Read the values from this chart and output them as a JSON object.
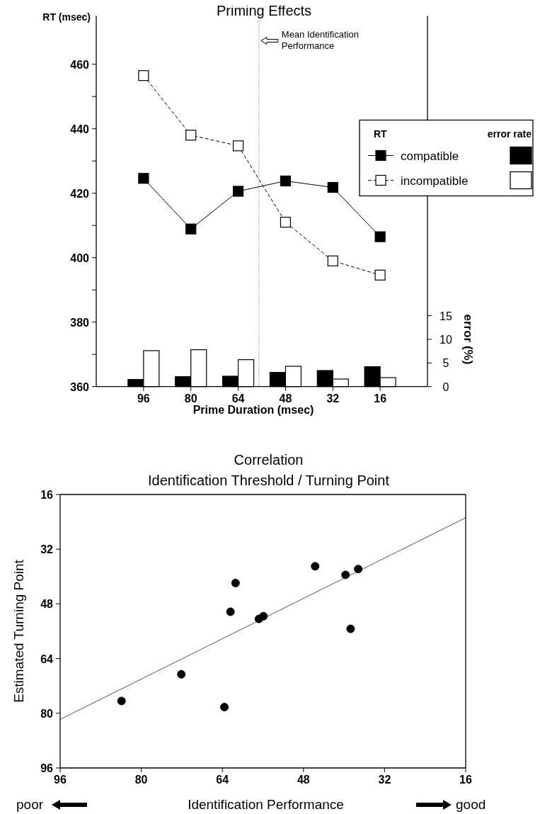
{
  "chart_data": [
    {
      "type": "line",
      "title": "Priming Effects",
      "xlabel": "Prime Duration (msec)",
      "ylabel": "RT (msec)",
      "y2label": "error (%)",
      "legend_title": "RT",
      "annotations": [
        "error rate"
      ],
      "x": [
        96,
        80,
        64,
        48,
        32,
        16
      ],
      "xlim": [
        112,
        0
      ],
      "xticks": [
        96,
        80,
        64,
        48,
        32,
        16
      ],
      "ylim": [
        360,
        475
      ],
      "yticks": [
        360,
        {
          "value": 370,
          "label": null
        },
        380,
        {
          "value": 390,
          "label": null
        },
        400,
        {
          "value": 410,
          "label": null
        },
        420,
        {
          "value": 430,
          "label": null
        },
        440,
        {
          "value": 450,
          "label": null
        },
        460
      ],
      "y2lim": [
        0,
        78.4
      ],
      "y2ticks": [
        0,
        5,
        10,
        15
      ],
      "legend": "top right",
      "marker": "square",
      "ref_lines": [
        {
          "axis": "x",
          "value": 57,
          "label": "Mean Identification Performance",
          "line_style": "dotted"
        }
      ],
      "series": [
        {
          "name": "compatible",
          "type": "line",
          "color": "#000000",
          "line_style": "solid",
          "values": [
            424.6,
            408.9,
            420.6,
            423.8,
            421.8,
            406.5
          ]
        },
        {
          "name": "incompatible",
          "type": "line",
          "color": "#ffffff",
          "line_style": "dashed",
          "values": [
            456.5,
            438,
            434.7,
            411,
            399,
            394.6
          ]
        },
        {
          "type": "bar",
          "axis": "y2",
          "color": "#000000",
          "values": [
            1.5,
            2.1,
            2.2,
            3.0,
            3.4,
            4.2
          ]
        },
        {
          "type": "bar",
          "axis": "y2",
          "color": "#ffffff",
          "values": [
            7.6,
            7.8,
            5.7,
            4.3,
            1.6,
            1.9
          ]
        }
      ]
    },
    {
      "type": "scatter",
      "title": "Correlation",
      "subtitle": "Identification Threshold / Turning Point",
      "xlabel": "Identification Performance",
      "ylabel": "Estimated Turning Point",
      "annotations": [
        "poor",
        "good"
      ],
      "xlim": [
        96,
        16
      ],
      "xticks": [
        96,
        80,
        64,
        48,
        32,
        16
      ],
      "ylim": [
        96,
        16
      ],
      "yticks": [
        96,
        80,
        64,
        48,
        32,
        16
      ],
      "marker": "circle",
      "series": [
        {
          "type": "scatter",
          "color": "#000000",
          "x": [
            83.9,
            72.1,
            63.6,
            62.4,
            61.4,
            56.8,
            55.9,
            45.7,
            39.7,
            37.2,
            38.7
          ],
          "values": [
            76.4,
            68.6,
            78.2,
            50.3,
            41.9,
            52.4,
            51.6,
            37.0,
            39.5,
            37.8,
            55.3
          ]
        },
        {
          "type": "line",
          "color": "#555555",
          "line_style": "solid",
          "marker": "none",
          "x": [
            96,
            16
          ],
          "values": [
            81.8,
            22.8
          ]
        }
      ]
    }
  ]
}
